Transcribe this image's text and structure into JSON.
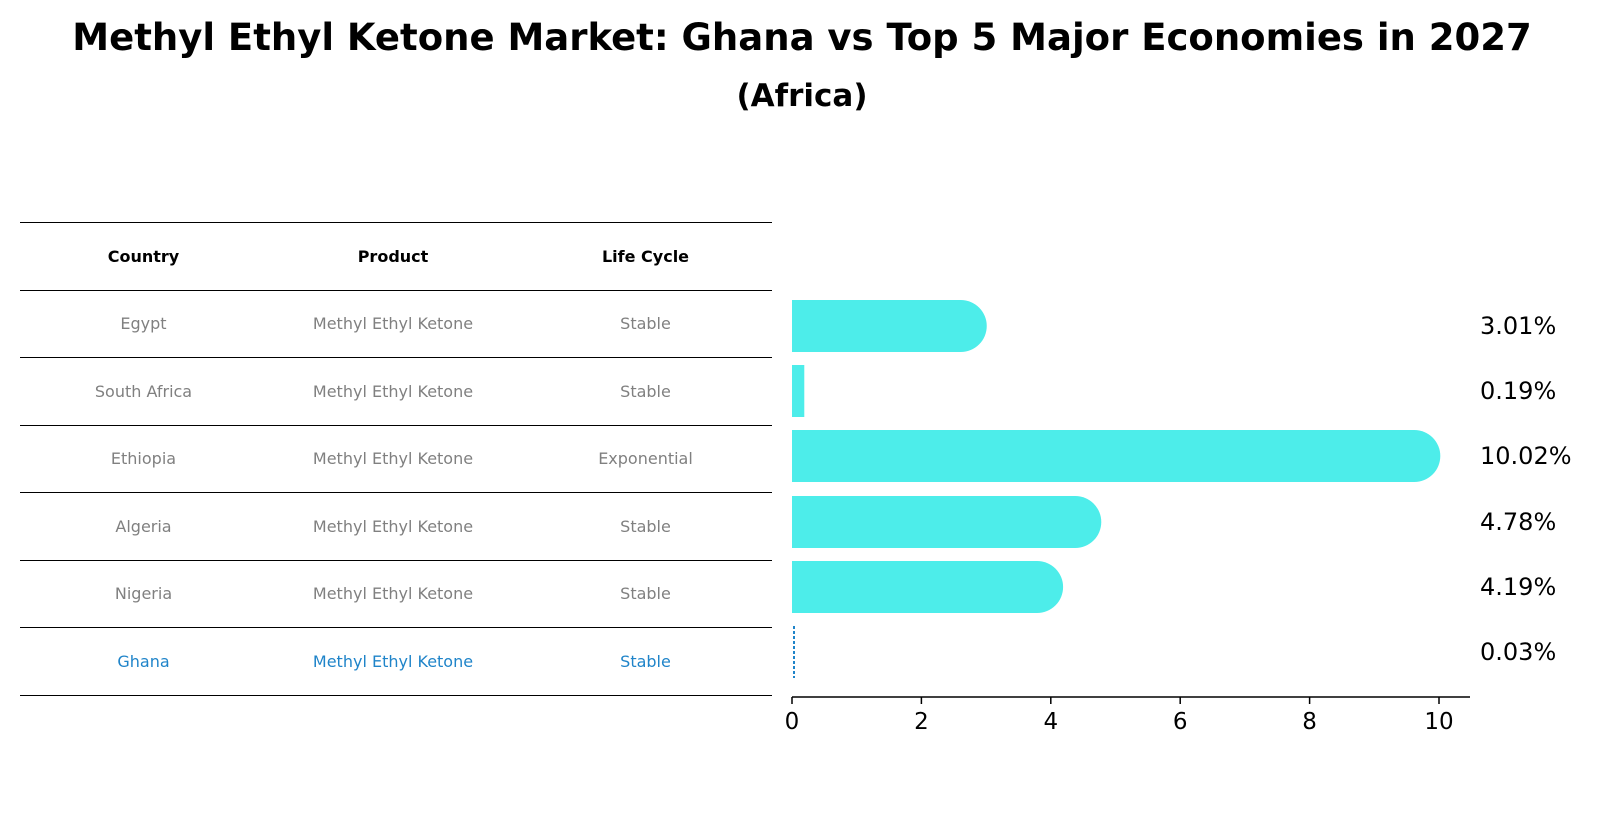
{
  "title": "Methyl Ethyl Ketone Market: Ghana vs Top 5 Major Economies in 2027",
  "subtitle": "(Africa)",
  "table": {
    "headers": [
      "Country",
      "Product",
      "Life Cycle"
    ],
    "rows": [
      {
        "country": "Egypt",
        "product": "Methyl Ethyl Ketone",
        "life_cycle": "Stable"
      },
      {
        "country": "South Africa",
        "product": "Methyl Ethyl Ketone",
        "life_cycle": "Stable"
      },
      {
        "country": "Ethiopia",
        "product": "Methyl Ethyl Ketone",
        "life_cycle": "Exponential"
      },
      {
        "country": "Algeria",
        "product": "Methyl Ethyl Ketone",
        "life_cycle": "Stable"
      },
      {
        "country": "Nigeria",
        "product": "Methyl Ethyl Ketone",
        "life_cycle": "Stable"
      },
      {
        "country": "Ghana",
        "product": "Methyl Ethyl Ketone",
        "life_cycle": "Stable"
      }
    ]
  },
  "chart_data": {
    "type": "bar",
    "orientation": "horizontal",
    "categories": [
      "Egypt",
      "South Africa",
      "Ethiopia",
      "Algeria",
      "Nigeria",
      "Ghana"
    ],
    "values": [
      3.01,
      0.19,
      10.02,
      4.78,
      4.19,
      0.03
    ],
    "value_labels": [
      "3.01%",
      "0.19%",
      "10.02%",
      "4.78%",
      "4.19%",
      "0.03%"
    ],
    "xlim": [
      0,
      10.5
    ],
    "xticks": [
      0,
      2,
      4,
      6,
      8,
      10
    ],
    "grid": false,
    "colors": {
      "bar": "#4DEDEA",
      "highlight_bar": "#1f84c9",
      "highlight_text": "#1f84c9"
    },
    "highlight": "Ghana"
  }
}
